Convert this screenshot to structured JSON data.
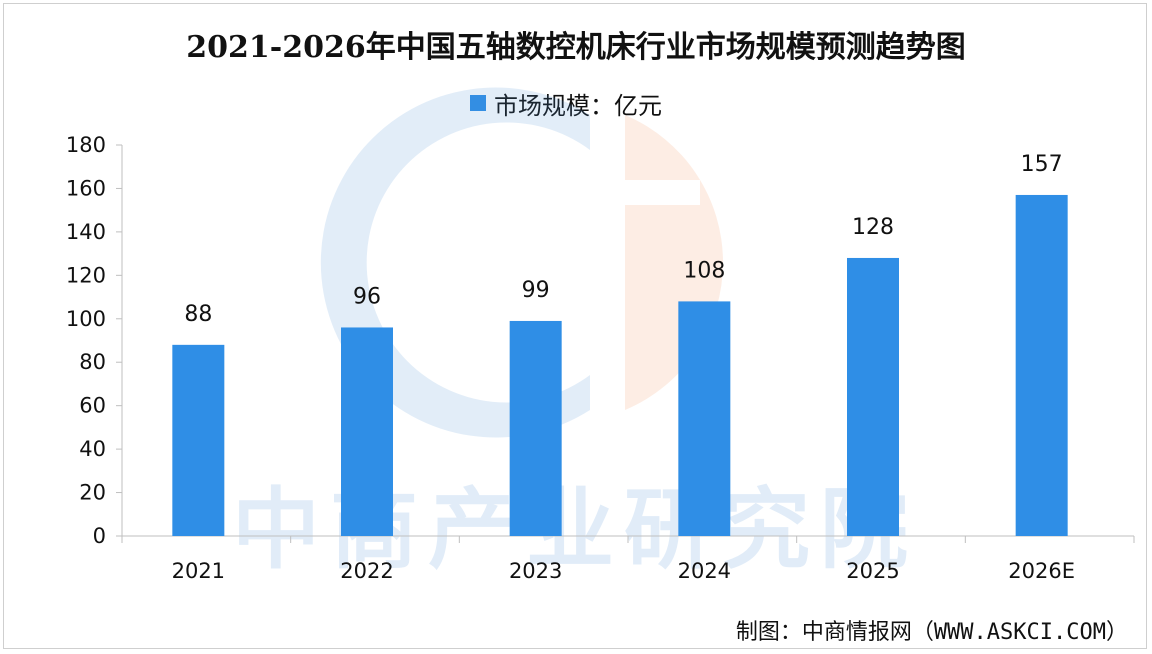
{
  "chart_data": {
    "type": "bar",
    "title": "2021-2026年中国五轴数控机床行业市场规模预测趋势图",
    "legend": "市场规模：亿元",
    "series": [
      {
        "name": "市场规模：亿元",
        "values": [
          88,
          96,
          99,
          108,
          128,
          157
        ]
      }
    ],
    "categories": [
      "2021",
      "2022",
      "2023",
      "2024",
      "2025",
      "2026E"
    ],
    "ylim": [
      0,
      180
    ],
    "ytick_step": 20,
    "yticks": [
      "0",
      "20",
      "40",
      "60",
      "80",
      "100",
      "120",
      "140",
      "160",
      "180"
    ],
    "data_labels": [
      "88",
      "96",
      "99",
      "108",
      "128",
      "157"
    ],
    "grid": false,
    "legend_position": "top-center",
    "bar_color": "#2f8ee6"
  },
  "watermark": "中商产业研究院",
  "source": "制图：中商情报网（WWW.ASKCI.COM）"
}
